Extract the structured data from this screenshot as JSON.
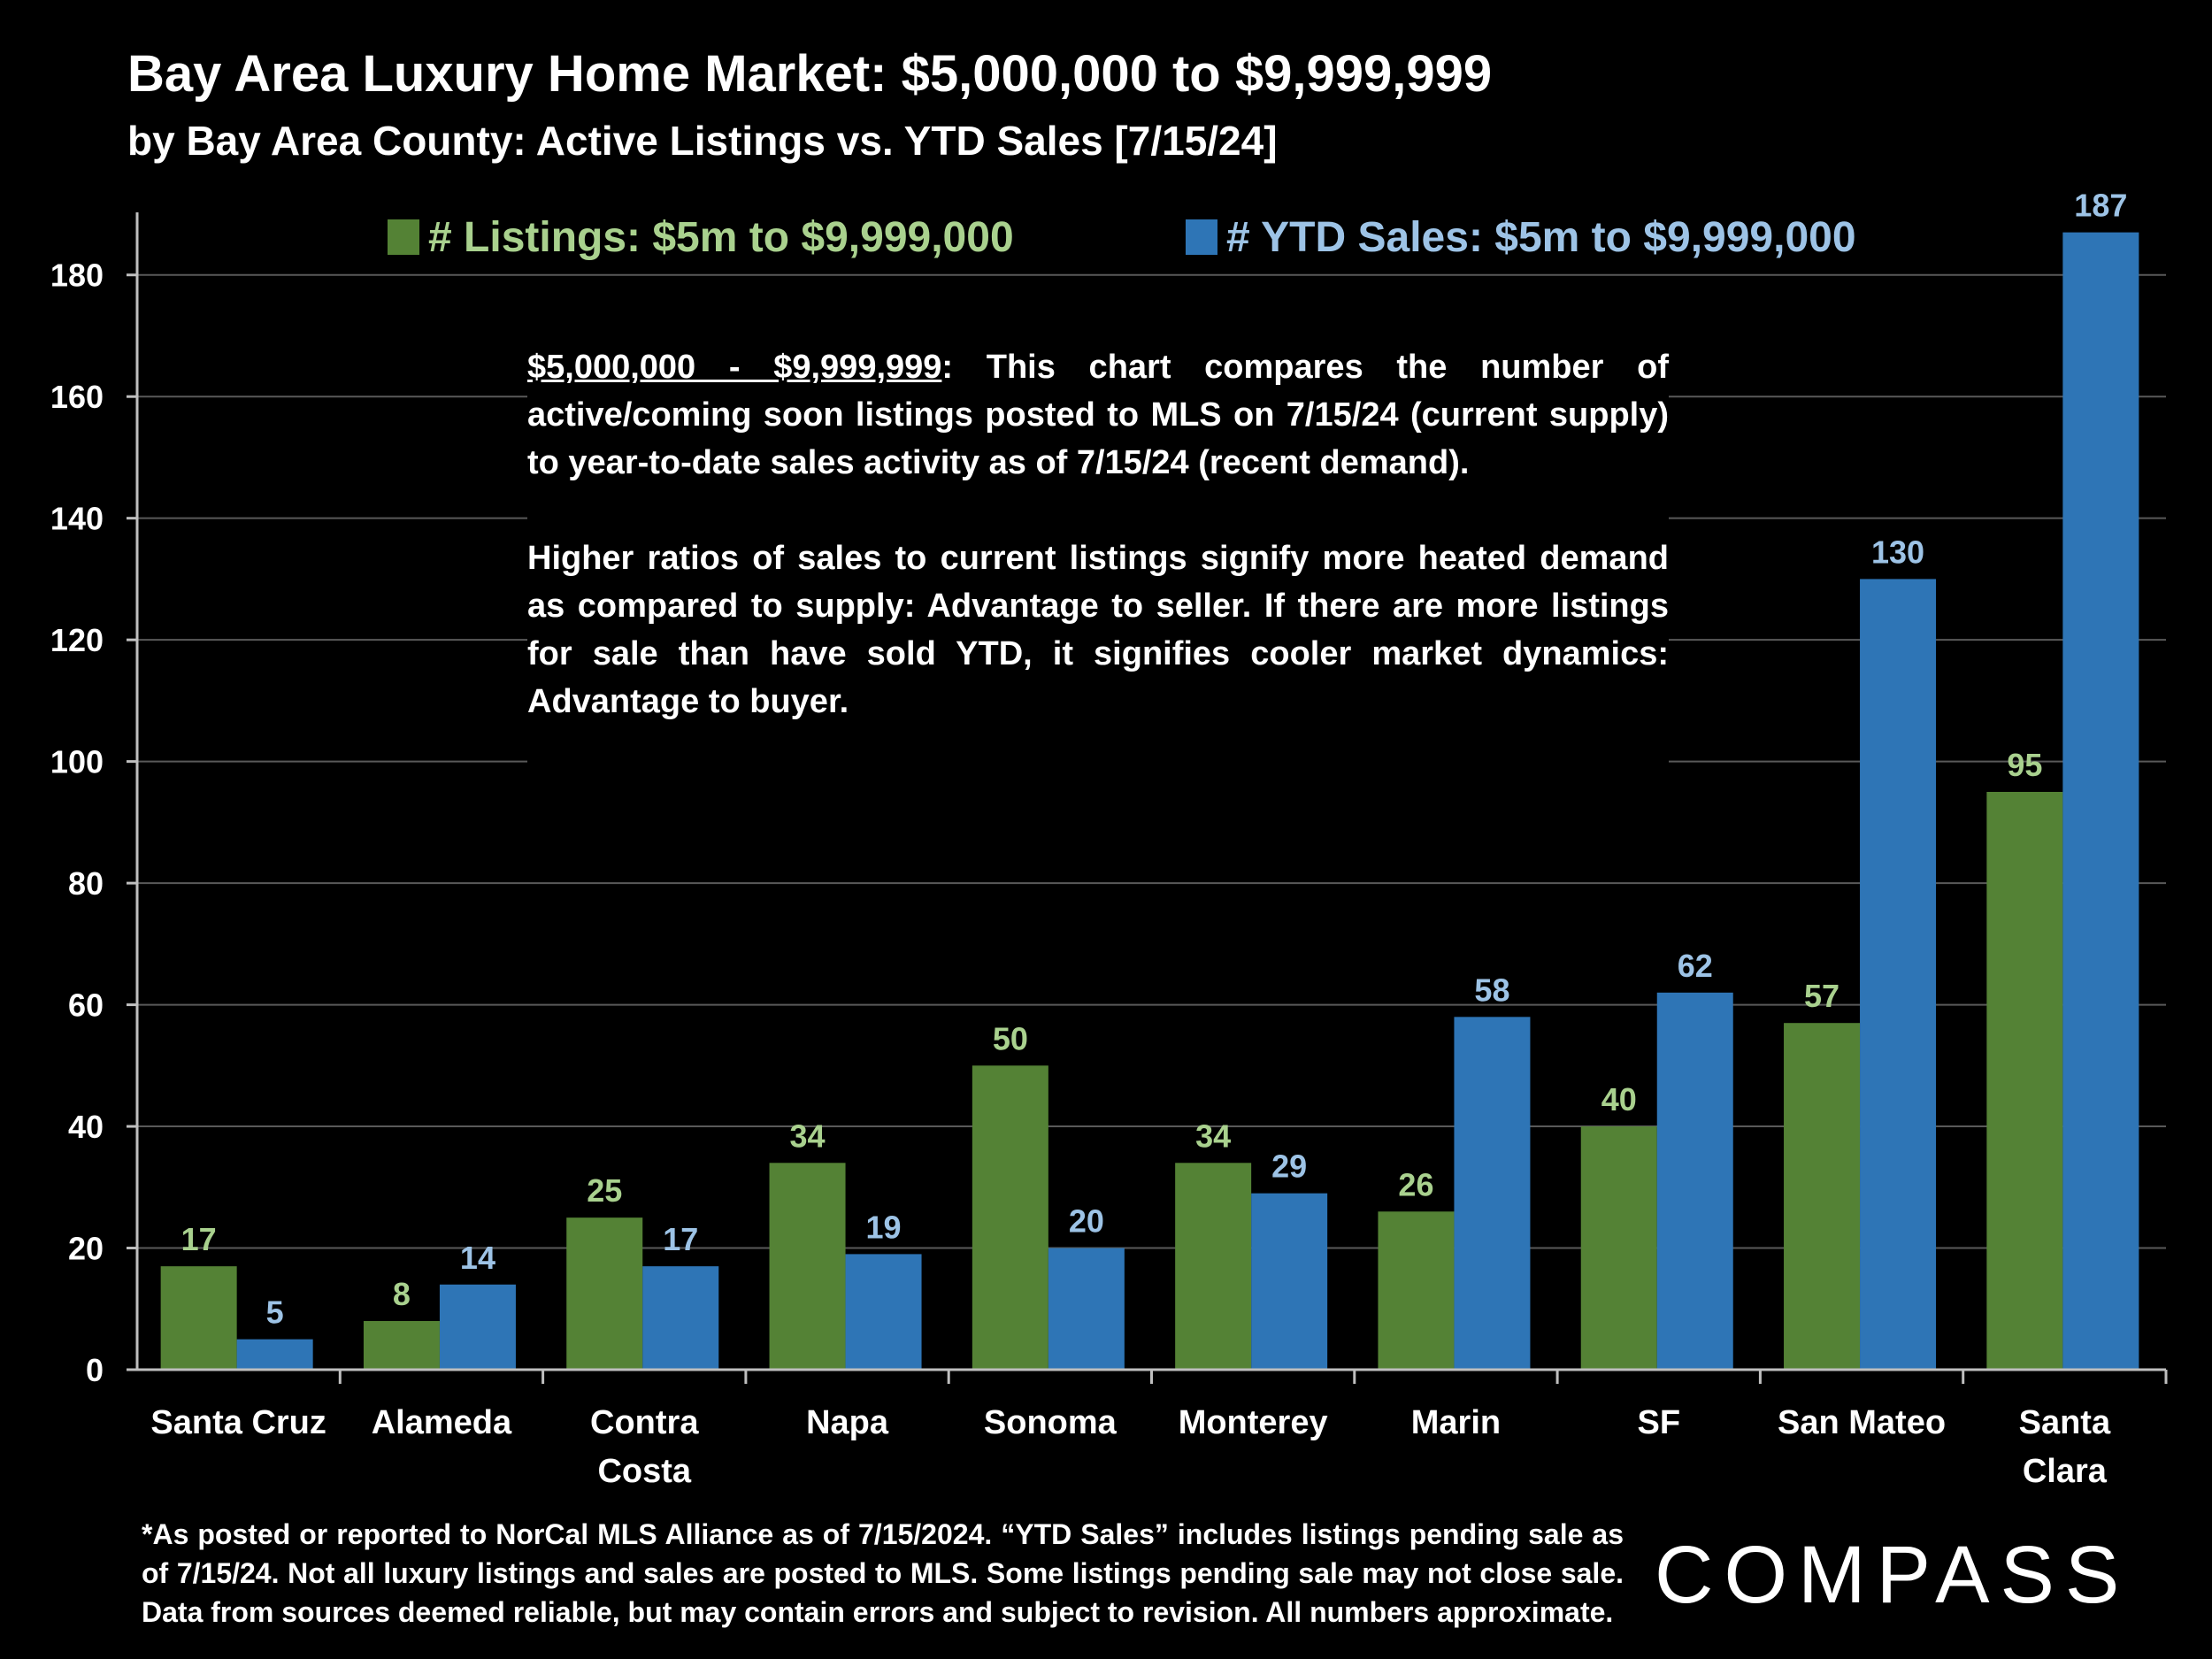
{
  "header": {
    "title": "Bay Area Luxury Home Market: $5,000,000 to $9,999,999",
    "subtitle": "by Bay Area County:  Active Listings vs. YTD Sales [7/15/24]"
  },
  "note": {
    "lead": "$5,000,000 - $9,999,999",
    "para1_rest": ":  This chart compares the number of active/coming soon listings posted to MLS on 7/15/24 (current supply) to year-to-date sales activity as of 7/15/24 (recent demand).",
    "para2": "Higher ratios of sales to current listings signify more heated demand as compared to supply:  Advantage to seller. If there are more listings for sale than have sold YTD, it signifies cooler market dynamics:  Advantage to buyer."
  },
  "footnote": "*As posted or reported to NorCal MLS Alliance as of 7/15/2024. “YTD Sales” includes listings pending sale as of 7/15/24. Not all luxury listings and sales are posted to MLS. Some listings pending sale may not close sale. Data from sources deemed reliable, but may contain errors and subject to revision. All numbers approximate.",
  "logo": {
    "text": "COMPASS"
  },
  "colors": {
    "listings": "#548235",
    "sales": "#2E75B6",
    "listings_label": "#A9D18E",
    "sales_label": "#9DC3E6",
    "grid": "#595959"
  },
  "chart_data": {
    "type": "bar",
    "title": "Bay Area Luxury Home Market: $5,000,000 to $9,999,999",
    "xlabel": "",
    "ylabel": "",
    "ylim": [
      0,
      190
    ],
    "yticks": [
      0,
      20,
      40,
      60,
      80,
      100,
      120,
      140,
      160,
      180
    ],
    "grid": true,
    "legend_position": "top",
    "categories": [
      [
        "Santa Cruz"
      ],
      [
        "Alameda"
      ],
      [
        "Contra",
        "Costa"
      ],
      [
        "Napa"
      ],
      [
        "Sonoma"
      ],
      [
        "Monterey"
      ],
      [
        "Marin"
      ],
      [
        "SF"
      ],
      [
        "San Mateo"
      ],
      [
        "Santa",
        "Clara"
      ]
    ],
    "series": [
      {
        "name": "# Listings:  $5m to $9,999,000",
        "values": [
          17,
          8,
          25,
          34,
          50,
          34,
          26,
          40,
          57,
          95
        ]
      },
      {
        "name": "# YTD Sales:  $5m to $9,999,000",
        "values": [
          5,
          14,
          17,
          19,
          20,
          29,
          58,
          62,
          130,
          187
        ]
      }
    ]
  }
}
